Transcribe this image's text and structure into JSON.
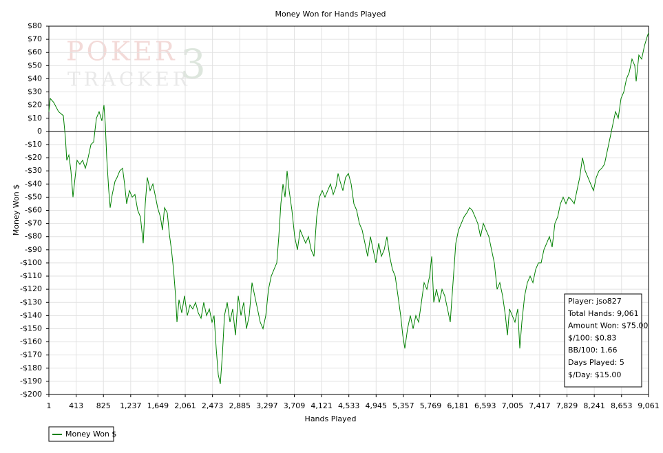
{
  "chart_data": {
    "type": "line",
    "title": "Money Won for Hands Played",
    "xlabel": "Hands Played",
    "ylabel": "Money Won $",
    "watermark": [
      "POKER",
      "TRACKER",
      "3"
    ],
    "grid": true,
    "zero_line": true,
    "legend": "bottom-left",
    "annotations": [
      "Player: jso827",
      "Total Hands: 9,061",
      "Amount Won: $75.00",
      "$/100: $0.83",
      "BB/100: 1.66",
      "Days Played: 5",
      "$/Day: $15.00"
    ],
    "xlim": [
      1,
      9061
    ],
    "xticks": [
      1,
      413,
      825,
      {
        "value": 1237,
        "label": "1,237"
      },
      {
        "value": 1649,
        "label": "1,649"
      },
      {
        "value": 2061,
        "label": "2,061"
      },
      {
        "value": 2473,
        "label": "2,473"
      },
      {
        "value": 2885,
        "label": "2,885"
      },
      {
        "value": 3297,
        "label": "3,297"
      },
      {
        "value": 3709,
        "label": "3,709"
      },
      {
        "value": 4121,
        "label": "4,121"
      },
      {
        "value": 4533,
        "label": "4,533"
      },
      {
        "value": 4945,
        "label": "4,945"
      },
      {
        "value": 5357,
        "label": "5,357"
      },
      {
        "value": 5769,
        "label": "5,769"
      },
      {
        "value": 6181,
        "label": "6,181"
      },
      {
        "value": 6593,
        "label": "6,593"
      },
      {
        "value": 7005,
        "label": "7,005"
      },
      {
        "value": 7417,
        "label": "7,417"
      },
      {
        "value": 7829,
        "label": "7,829"
      },
      {
        "value": 8241,
        "label": "8,241"
      },
      {
        "value": 8653,
        "label": "8,653"
      },
      {
        "value": 9061,
        "label": "9,061"
      }
    ],
    "ylim": [
      -200,
      80
    ],
    "yticks": [
      {
        "value": 80,
        "label": "$80"
      },
      {
        "value": 70,
        "label": "$70"
      },
      {
        "value": 60,
        "label": "$60"
      },
      {
        "value": 50,
        "label": "$50"
      },
      {
        "value": 40,
        "label": "$40"
      },
      {
        "value": 30,
        "label": "$30"
      },
      {
        "value": 20,
        "label": "$20"
      },
      {
        "value": 10,
        "label": "$10"
      },
      0,
      {
        "value": -10,
        "label": "-$10"
      },
      {
        "value": -20,
        "label": "-$20"
      },
      {
        "value": -30,
        "label": "-$30"
      },
      {
        "value": -40,
        "label": "-$40"
      },
      {
        "value": -50,
        "label": "-$50"
      },
      {
        "value": -60,
        "label": "-$60"
      },
      {
        "value": -70,
        "label": "-$70"
      },
      {
        "value": -80,
        "label": "-$80"
      },
      {
        "value": -90,
        "label": "-$90"
      },
      {
        "value": -100,
        "label": "-$100"
      },
      {
        "value": -110,
        "label": "-$110"
      },
      {
        "value": -120,
        "label": "-$120"
      },
      {
        "value": -130,
        "label": "-$130"
      },
      {
        "value": -140,
        "label": "-$140"
      },
      {
        "value": -150,
        "label": "-$150"
      },
      {
        "value": -160,
        "label": "-$160"
      },
      {
        "value": -170,
        "label": "-$170"
      },
      {
        "value": -180,
        "label": "-$180"
      },
      {
        "value": -190,
        "label": "-$190"
      },
      {
        "value": -200,
        "label": "-$200"
      }
    ],
    "x": [
      1,
      22,
      74,
      147,
      219,
      251,
      271,
      303,
      334,
      365,
      386,
      427,
      469,
      511,
      552,
      594,
      636,
      677,
      719,
      760,
      802,
      833,
      854,
      875,
      906,
      927,
      958,
      1000,
      1031,
      1072,
      1114,
      1145,
      1176,
      1218,
      1260,
      1301,
      1343,
      1384,
      1426,
      1457,
      1488,
      1530,
      1572,
      1613,
      1644,
      1686,
      1717,
      1748,
      1790,
      1821,
      1853,
      1884,
      1915,
      1936,
      1967,
      2009,
      2050,
      2092,
      2133,
      2175,
      2217,
      2258,
      2300,
      2341,
      2383,
      2425,
      2466,
      2497,
      2529,
      2560,
      2591,
      2622,
      2654,
      2695,
      2737,
      2778,
      2820,
      2862,
      2903,
      2945,
      2986,
      3028,
      3070,
      3111,
      3153,
      3194,
      3236,
      3278,
      3319,
      3361,
      3402,
      3444,
      3475,
      3506,
      3538,
      3569,
      3600,
      3631,
      3673,
      3715,
      3756,
      3798,
      3839,
      3881,
      3923,
      3964,
      4006,
      4047,
      4089,
      4131,
      4172,
      4214,
      4255,
      4297,
      4339,
      4370,
      4401,
      4443,
      4484,
      4526,
      4568,
      4609,
      4651,
      4692,
      4734,
      4776,
      4817,
      4859,
      4900,
      4942,
      4984,
      5025,
      5067,
      5108,
      5150,
      5192,
      5233,
      5275,
      5316,
      5348,
      5379,
      5420,
      5462,
      5504,
      5545,
      5587,
      5629,
      5670,
      5712,
      5753,
      5785,
      5816,
      5857,
      5899,
      5941,
      5982,
      6024,
      6065,
      6107,
      6149,
      6190,
      6232,
      6273,
      6315,
      6357,
      6398,
      6440,
      6481,
      6523,
      6565,
      6606,
      6648,
      6689,
      6731,
      6773,
      6814,
      6856,
      6898,
      6929,
      6960,
      7002,
      7043,
      7085,
      7116,
      7147,
      7189,
      7230,
      7272,
      7314,
      7355,
      7397,
      7438,
      7480,
      7522,
      7563,
      7605,
      7646,
      7688,
      7730,
      7771,
      7813,
      7855,
      7896,
      7938,
      7979,
      8021,
      8063,
      8104,
      8146,
      8187,
      8229,
      8271,
      8312,
      8354,
      8395,
      8437,
      8479,
      8520,
      8562,
      8603,
      8645,
      8687,
      8728,
      8770,
      8811,
      8853,
      8874,
      8915,
      8957,
      8999,
      9040,
      9061
    ],
    "series": [
      {
        "name": "Money Won $",
        "color": "#008000",
        "values": [
          15,
          25,
          22,
          15,
          12,
          -5,
          -22,
          -18,
          -30,
          -50,
          -40,
          -22,
          -25,
          -22,
          -28,
          -20,
          -10,
          -8,
          10,
          15,
          8,
          20,
          5,
          -20,
          -45,
          -58,
          -48,
          -38,
          -35,
          -30,
          -28,
          -40,
          -55,
          -45,
          -50,
          -48,
          -60,
          -65,
          -85,
          -55,
          -35,
          -45,
          -40,
          -50,
          -58,
          -65,
          -75,
          -58,
          -62,
          -78,
          -90,
          -105,
          -125,
          -145,
          -128,
          -138,
          -125,
          -140,
          -132,
          -135,
          -130,
          -138,
          -142,
          -130,
          -140,
          -135,
          -145,
          -140,
          -165,
          -185,
          -192,
          -170,
          -140,
          -130,
          -145,
          -135,
          -155,
          -125,
          -140,
          -130,
          -150,
          -140,
          -115,
          -125,
          -135,
          -145,
          -150,
          -140,
          -120,
          -110,
          -105,
          -100,
          -80,
          -55,
          -40,
          -50,
          -30,
          -45,
          -60,
          -80,
          -90,
          -75,
          -80,
          -85,
          -80,
          -90,
          -95,
          -65,
          -50,
          -45,
          -50,
          -45,
          -40,
          -48,
          -42,
          -32,
          -38,
          -45,
          -35,
          -32,
          -40,
          -55,
          -60,
          -70,
          -75,
          -85,
          -95,
          -80,
          -90,
          -100,
          -85,
          -95,
          -90,
          -80,
          -95,
          -105,
          -110,
          -125,
          -140,
          -155,
          -165,
          -150,
          -140,
          -150,
          -140,
          -145,
          -130,
          -115,
          -120,
          -110,
          -95,
          -130,
          -120,
          -130,
          -120,
          -125,
          -135,
          -145,
          -115,
          -85,
          -75,
          -70,
          -65,
          -62,
          -58,
          -60,
          -65,
          -70,
          -80,
          -70,
          -75,
          -80,
          -90,
          -100,
          -120,
          -115,
          -125,
          -140,
          -155,
          -135,
          -140,
          -145,
          -135,
          -165,
          -145,
          -125,
          -115,
          -110,
          -115,
          -105,
          -100,
          -100,
          -90,
          -85,
          -80,
          -88,
          -70,
          -65,
          -55,
          -50,
          -55,
          -50,
          -52,
          -55,
          -45,
          -35,
          -20,
          -30,
          -35,
          -40,
          -45,
          -35,
          -30,
          -28,
          -25,
          -15,
          -5,
          5,
          15,
          10,
          25,
          30,
          40,
          45,
          55,
          50,
          38,
          58,
          55,
          65,
          72,
          75
        ]
      }
    ]
  }
}
